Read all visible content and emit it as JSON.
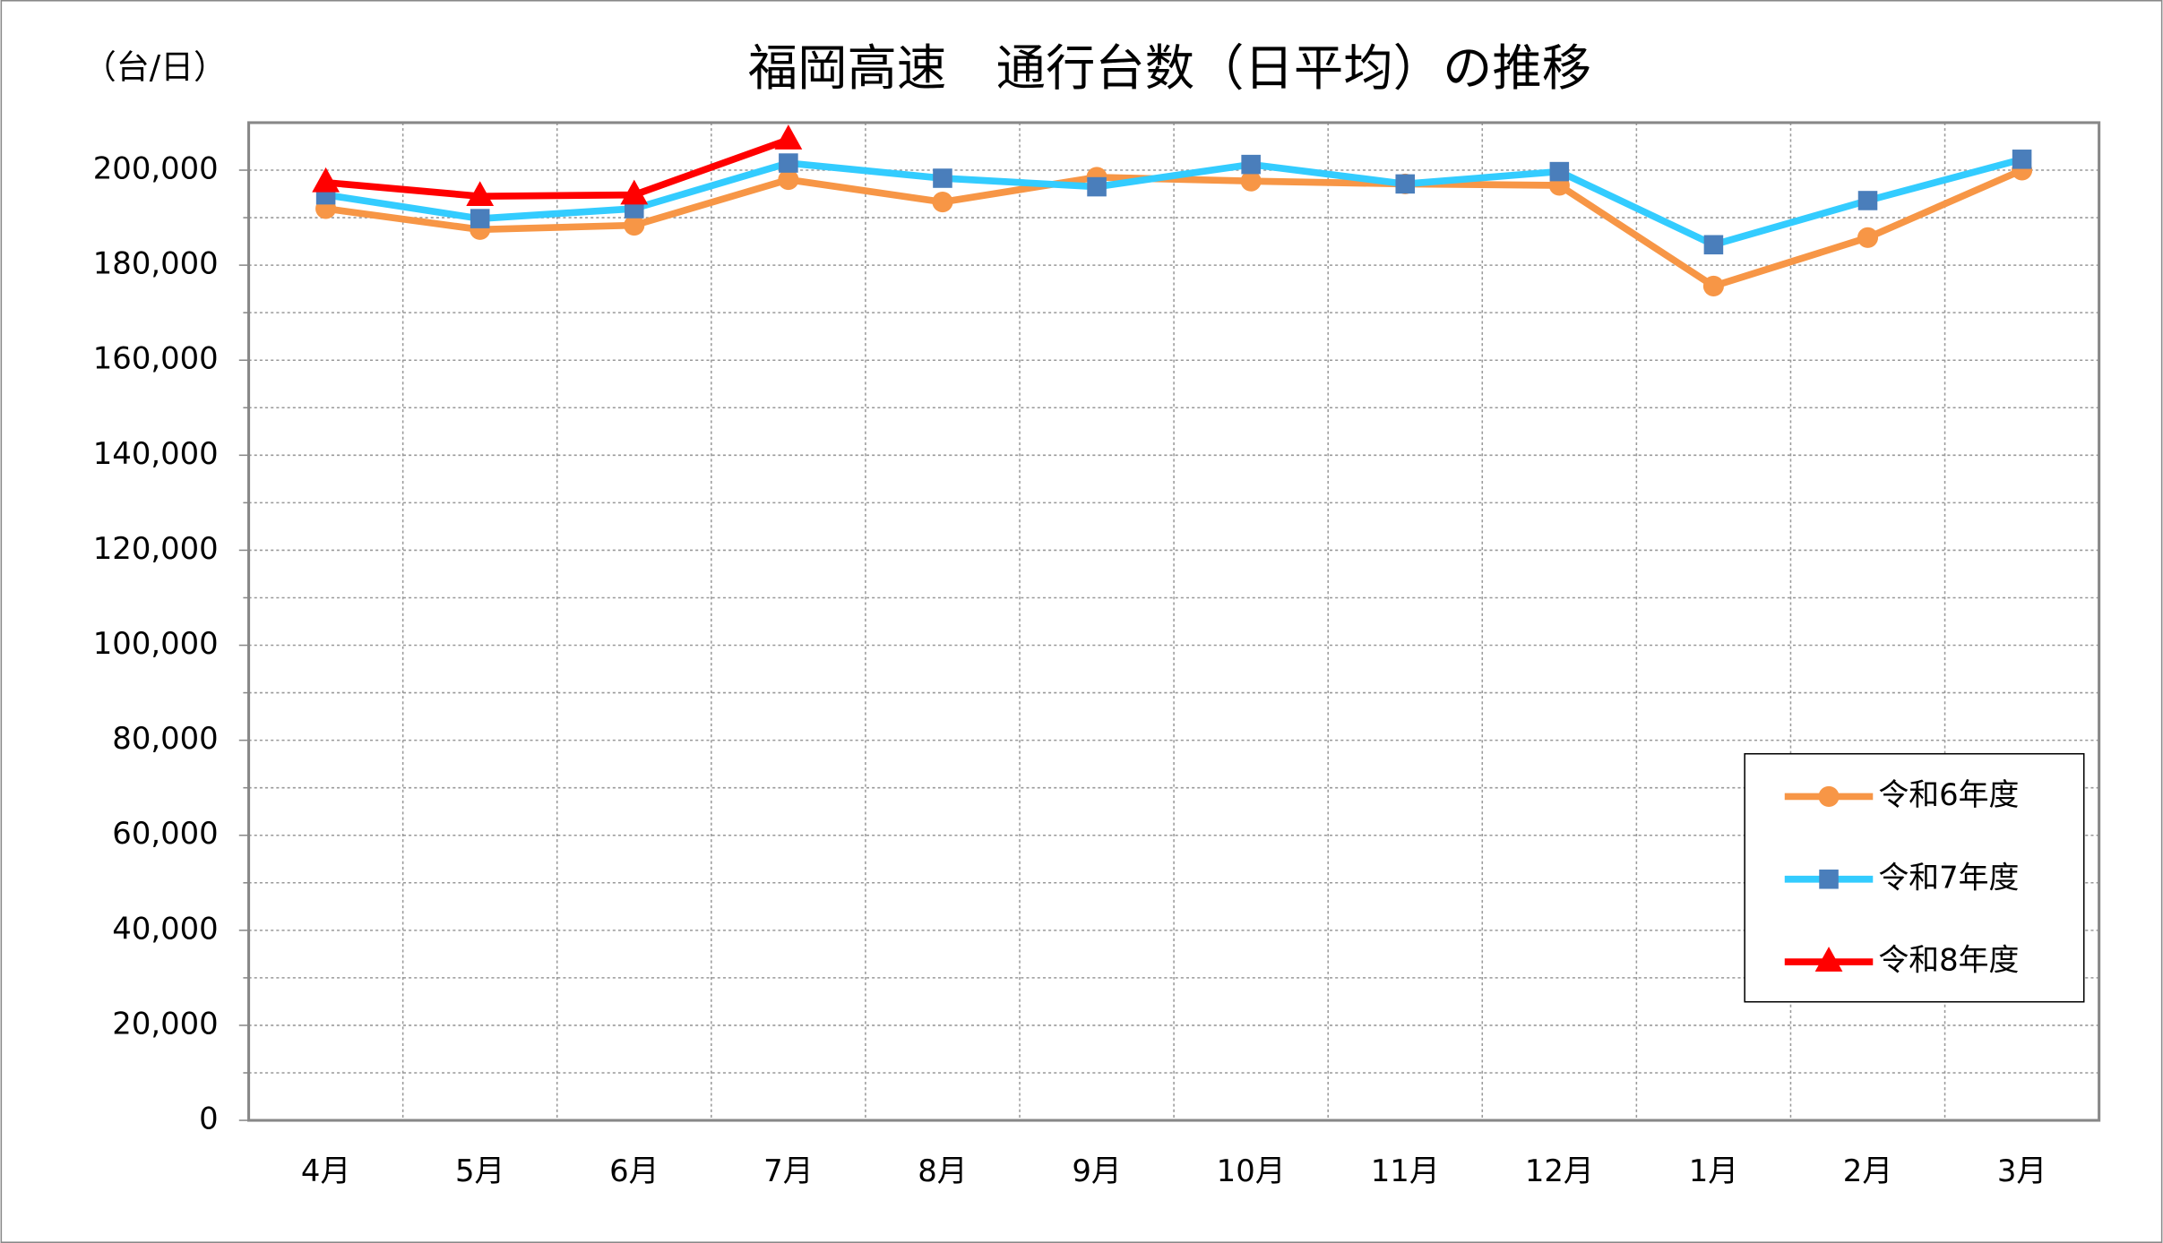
{
  "chart_data": {
    "type": "line",
    "title": "福岡高速　通行台数（日平均）の推移",
    "y_label": "（台/日）",
    "categories": [
      "4月",
      "5月",
      "6月",
      "7月",
      "8月",
      "9月",
      "10月",
      "11月",
      "12月",
      "1月",
      "2月",
      "3月"
    ],
    "series": [
      {
        "name": "令和6年度",
        "color": "#F79646",
        "marker": "circle",
        "marker_color": "#F79646",
        "values": [
          191900,
          187500,
          188400,
          198000,
          193300,
          198500,
          197700,
          197100,
          196800,
          175600,
          185800,
          200000
        ]
      },
      {
        "name": "令和7年度",
        "color": "#33CCFF",
        "marker": "square",
        "marker_color": "#4A7EBB",
        "values": [
          194800,
          189800,
          191900,
          201500,
          198300,
          196500,
          201200,
          197100,
          199700,
          184300,
          193600,
          202300
        ]
      },
      {
        "name": "令和8年度",
        "color": "#FF0000",
        "marker": "triangle",
        "marker_color": "#FF0000",
        "values": [
          197400,
          194500,
          194800,
          206400,
          null,
          null,
          null,
          null,
          null,
          null,
          null,
          null
        ]
      }
    ],
    "ylim": [
      0,
      210000
    ],
    "yticks": [
      0,
      {
        "value": 20000,
        "label": "20,000"
      },
      {
        "value": 40000,
        "label": "40,000"
      },
      {
        "value": 60000,
        "label": "60,000"
      },
      {
        "value": 80000,
        "label": "80,000"
      },
      {
        "value": 100000,
        "label": "100,000"
      },
      {
        "value": 120000,
        "label": "120,000"
      },
      {
        "value": 140000,
        "label": "140,000"
      },
      {
        "value": 160000,
        "label": "160,000"
      },
      {
        "value": 180000,
        "label": "180,000"
      },
      {
        "value": 200000,
        "label": "200,000"
      }
    ],
    "grid": true,
    "legend": "lower right"
  }
}
